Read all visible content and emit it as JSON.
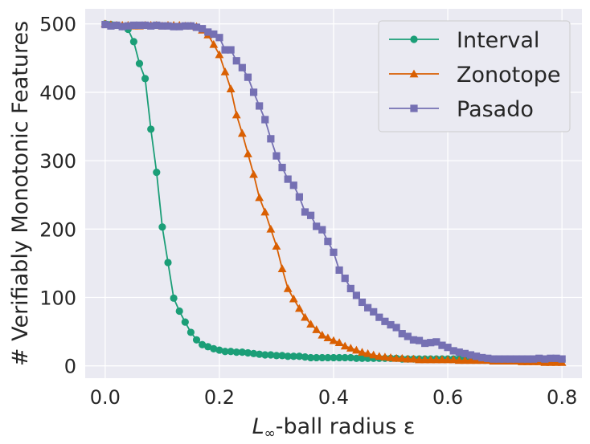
{
  "chart_data": {
    "type": "line",
    "xlabel_prefix": "L",
    "xlabel_sub": "∞",
    "xlabel_suffix": "-ball radius ε",
    "ylabel": "# Verifiably Monotonic Features",
    "xlim": [
      -0.035,
      0.835
    ],
    "ylim": [
      -18,
      522
    ],
    "xticks": [
      0.0,
      0.2,
      0.4,
      0.6,
      0.8
    ],
    "xtick_labels": [
      "0.0",
      "0.2",
      "0.4",
      "0.6",
      "0.8"
    ],
    "yticks": [
      0,
      100,
      200,
      300,
      400,
      500
    ],
    "ytick_labels": [
      "0",
      "100",
      "200",
      "300",
      "400",
      "500"
    ],
    "grid": true,
    "legend_position": "top-right",
    "series": [
      {
        "name": "Interval",
        "color": "#1b9e77",
        "marker": "circle",
        "x": [
          0.0,
          0.01,
          0.02,
          0.03,
          0.04,
          0.05,
          0.06,
          0.07,
          0.08,
          0.09,
          0.1,
          0.11,
          0.12,
          0.13,
          0.14,
          0.15,
          0.16,
          0.17,
          0.18,
          0.19,
          0.2,
          0.21,
          0.22,
          0.23,
          0.24,
          0.25,
          0.26,
          0.27,
          0.28,
          0.29,
          0.3,
          0.31,
          0.32,
          0.33,
          0.34,
          0.35,
          0.36,
          0.37,
          0.38,
          0.39,
          0.4,
          0.41,
          0.42,
          0.43,
          0.44,
          0.45,
          0.46,
          0.47,
          0.48,
          0.49,
          0.5,
          0.51,
          0.52,
          0.53,
          0.54,
          0.55,
          0.56,
          0.57,
          0.58,
          0.59,
          0.6,
          0.61,
          0.62,
          0.63,
          0.64,
          0.65,
          0.66,
          0.67,
          0.68,
          0.69,
          0.7,
          0.71,
          0.72,
          0.73,
          0.74,
          0.75,
          0.76,
          0.77,
          0.78,
          0.79,
          0.8
        ],
        "y": [
          500,
          499,
          498,
          496,
          492,
          474,
          442,
          420,
          346,
          283,
          203,
          151,
          99,
          80,
          64,
          49,
          38,
          31,
          28,
          25,
          23,
          21,
          21,
          20,
          20,
          19,
          18,
          17,
          16,
          16,
          15,
          15,
          14,
          14,
          14,
          13,
          12,
          12,
          12,
          12,
          12,
          12,
          12,
          12,
          11,
          11,
          11,
          11,
          11,
          11,
          11,
          11,
          10,
          10,
          10,
          10,
          10,
          10,
          10,
          10,
          10,
          10,
          10,
          10,
          9,
          9,
          9,
          9,
          9,
          9,
          9,
          9,
          9,
          9,
          9,
          9,
          9,
          8,
          8,
          8,
          8
        ]
      },
      {
        "name": "Zonotope",
        "color": "#d95f02",
        "marker": "triangle",
        "x": [
          0.0,
          0.01,
          0.02,
          0.03,
          0.04,
          0.05,
          0.06,
          0.07,
          0.08,
          0.09,
          0.1,
          0.11,
          0.12,
          0.13,
          0.14,
          0.15,
          0.16,
          0.17,
          0.18,
          0.19,
          0.2,
          0.21,
          0.22,
          0.23,
          0.24,
          0.25,
          0.26,
          0.27,
          0.28,
          0.29,
          0.3,
          0.31,
          0.32,
          0.33,
          0.34,
          0.35,
          0.36,
          0.37,
          0.38,
          0.39,
          0.4,
          0.41,
          0.42,
          0.43,
          0.44,
          0.45,
          0.46,
          0.47,
          0.48,
          0.49,
          0.5,
          0.51,
          0.52,
          0.53,
          0.54,
          0.55,
          0.56,
          0.57,
          0.58,
          0.59,
          0.6,
          0.61,
          0.62,
          0.63,
          0.64,
          0.65,
          0.66,
          0.67,
          0.68,
          0.69,
          0.7,
          0.71,
          0.72,
          0.73,
          0.74,
          0.75,
          0.76,
          0.77,
          0.78,
          0.79,
          0.8
        ],
        "y": [
          500,
          499,
          498,
          498,
          498,
          497,
          497,
          498,
          498,
          498,
          497,
          498,
          498,
          498,
          497,
          497,
          496,
          491,
          484,
          470,
          455,
          430,
          405,
          367,
          340,
          310,
          280,
          246,
          225,
          200,
          175,
          142,
          113,
          98,
          84,
          71,
          61,
          53,
          45,
          41,
          37,
          34,
          29,
          26,
          23,
          20,
          18,
          16,
          14,
          13,
          12,
          11,
          11,
          10,
          10,
          9,
          9,
          9,
          9,
          9,
          9,
          9,
          8,
          8,
          8,
          8,
          8,
          8,
          7,
          7,
          7,
          7,
          7,
          6,
          6,
          6,
          6,
          5,
          5,
          5,
          5
        ]
      },
      {
        "name": "Pasado",
        "color": "#7570b3",
        "marker": "square",
        "x": [
          0.0,
          0.01,
          0.02,
          0.03,
          0.04,
          0.05,
          0.06,
          0.07,
          0.08,
          0.09,
          0.1,
          0.11,
          0.12,
          0.13,
          0.14,
          0.15,
          0.16,
          0.17,
          0.18,
          0.19,
          0.2,
          0.21,
          0.22,
          0.23,
          0.24,
          0.25,
          0.26,
          0.27,
          0.28,
          0.29,
          0.3,
          0.31,
          0.32,
          0.33,
          0.34,
          0.35,
          0.36,
          0.37,
          0.38,
          0.39,
          0.4,
          0.41,
          0.42,
          0.43,
          0.44,
          0.45,
          0.46,
          0.47,
          0.48,
          0.49,
          0.5,
          0.51,
          0.52,
          0.53,
          0.54,
          0.55,
          0.56,
          0.57,
          0.58,
          0.59,
          0.6,
          0.61,
          0.62,
          0.63,
          0.64,
          0.65,
          0.66,
          0.67,
          0.68,
          0.69,
          0.7,
          0.71,
          0.72,
          0.73,
          0.74,
          0.75,
          0.76,
          0.77,
          0.78,
          0.79,
          0.8
        ],
        "y": [
          499,
          497,
          498,
          496,
          497,
          498,
          498,
          498,
          497,
          498,
          497,
          497,
          496,
          496,
          497,
          497,
          495,
          493,
          488,
          485,
          480,
          462,
          462,
          446,
          436,
          422,
          400,
          380,
          360,
          332,
          307,
          290,
          273,
          264,
          247,
          225,
          220,
          204,
          199,
          182,
          166,
          140,
          128,
          113,
          103,
          93,
          85,
          79,
          71,
          65,
          60,
          56,
          47,
          43,
          38,
          37,
          33,
          34,
          35,
          30,
          27,
          22,
          20,
          18,
          16,
          14,
          12,
          11,
          10,
          10,
          10,
          10,
          10,
          10,
          10,
          10,
          11,
          10,
          11,
          11,
          10
        ]
      }
    ]
  }
}
